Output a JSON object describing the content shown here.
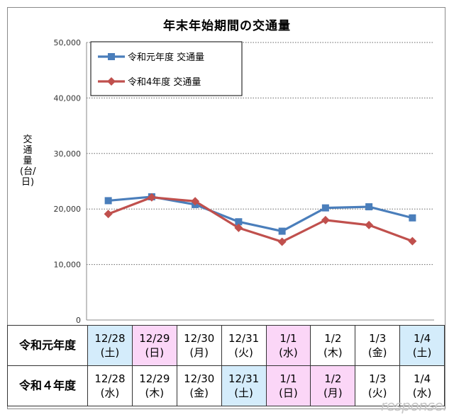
{
  "chart_data": {
    "type": "line",
    "title": "年末年始期間の交通量",
    "ylabel": "交通量(台/日)",
    "ylim": [
      0,
      50000
    ],
    "yticks": [
      0,
      10000,
      20000,
      30000,
      40000,
      50000
    ],
    "ytick_labels": [
      "0",
      "10,000",
      "20,000",
      "30,000",
      "40,000",
      "50,000"
    ],
    "grid": "horizontal dotted",
    "legend_position": "top-left",
    "categories": [
      "12/28",
      "12/29",
      "12/30",
      "12/31",
      "1/1",
      "1/2",
      "1/3",
      "1/4"
    ],
    "series": [
      {
        "name": "令和元年度 交通量",
        "color": "#4a7ebb",
        "marker": "square",
        "values": [
          21500,
          22200,
          20800,
          17700,
          16000,
          20200,
          20400,
          18400
        ]
      },
      {
        "name": "令和4年度 交通量",
        "color": "#c0504d",
        "marker": "diamond",
        "values": [
          19100,
          22100,
          21400,
          16600,
          14100,
          18000,
          17100,
          14200
        ]
      }
    ]
  },
  "table": {
    "rows": [
      {
        "label": "令和元年度",
        "cells": [
          {
            "date": "12/28",
            "day": "(土)",
            "type": "sat"
          },
          {
            "date": "12/29",
            "day": "(日)",
            "type": "sun"
          },
          {
            "date": "12/30",
            "day": "(月)",
            "type": ""
          },
          {
            "date": "12/31",
            "day": "(火)",
            "type": ""
          },
          {
            "date": "1/1",
            "day": "(水)",
            "type": "hol"
          },
          {
            "date": "1/2",
            "day": "(木)",
            "type": ""
          },
          {
            "date": "1/3",
            "day": "(金)",
            "type": ""
          },
          {
            "date": "1/4",
            "day": "(土)",
            "type": "sat"
          }
        ]
      },
      {
        "label": "令和４年度",
        "cells": [
          {
            "date": "12/28",
            "day": "(水)",
            "type": ""
          },
          {
            "date": "12/29",
            "day": "(木)",
            "type": ""
          },
          {
            "date": "12/30",
            "day": "(金)",
            "type": ""
          },
          {
            "date": "12/31",
            "day": "(土)",
            "type": "sat"
          },
          {
            "date": "1/1",
            "day": "(日)",
            "type": "sun"
          },
          {
            "date": "1/2",
            "day": "(月)",
            "type": "hol"
          },
          {
            "date": "1/3",
            "day": "(火)",
            "type": ""
          },
          {
            "date": "1/4",
            "day": "(水)",
            "type": ""
          }
        ]
      }
    ]
  },
  "watermark": "response."
}
